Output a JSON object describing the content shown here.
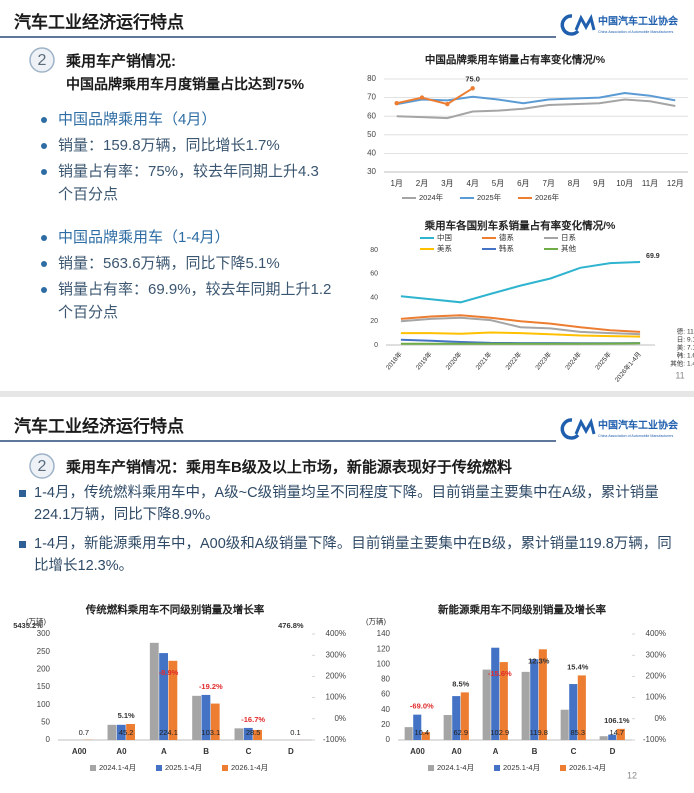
{
  "slides": [
    {
      "header": "汽车工业经济运行特点",
      "logo": "中国汽车工业协会",
      "logo_en": "China Association of Automobile Manufacturers",
      "number": "2",
      "heading": "乘用车产销情况:",
      "subheading": "中国品牌乘用车月度销量占比达到75%",
      "bullets": [
        "中国品牌乘用车（4月）",
        "销量：159.8万辆，同比增长1.7%",
        "销量占有率：75%，较去年同期上升4.3个百分点",
        "中国品牌乘用车（1-4月）",
        "销量：563.6万辆，同比下降5.1%",
        "销量占有率：69.9%，较去年同期上升1.2个百分点"
      ],
      "page": "11"
    },
    {
      "header": "汽车工业经济运行特点",
      "logo": "中国汽车工业协会",
      "logo_en": "China Association of Automobile Manufacturers",
      "number": "2",
      "heading": "乘用车产销情况：",
      "subheading": "乘用车B级及以上市场，新能源表现好于传统燃料",
      "bullets": [
        "1-4月，传统燃料乘用车中，A级~C级销量均呈不同程度下降。目前销量主要集中在A级，累计销量224.1万辆，同比下降8.9%。",
        "1-4月，新能源乘用车中，A00级和A级销量下降。目前销量主要集中在B级，累计销量119.8万辆，同比增长12.3%。"
      ],
      "page": "12"
    }
  ],
  "chart_data": [
    {
      "type": "line",
      "title": "中国品牌乘用车销量占有率变化情况/%",
      "categories": [
        "1月",
        "2月",
        "3月",
        "4月",
        "5月",
        "6月",
        "7月",
        "8月",
        "9月",
        "10月",
        "11月",
        "12月"
      ],
      "series": [
        {
          "name": "2024年",
          "color": "#a5a5a5",
          "values": [
            60,
            59.5,
            59,
            62.5,
            63,
            64,
            66,
            66.5,
            67,
            69,
            68,
            65.5
          ]
        },
        {
          "name": "2025年",
          "color": "#5b9bd5",
          "values": [
            66.5,
            69,
            68.5,
            70.5,
            69,
            67,
            69,
            69.5,
            70,
            72.5,
            71,
            68.5
          ]
        },
        {
          "name": "2026年",
          "color": "#ed7d31",
          "markers": true,
          "values": [
            67,
            70,
            66.5,
            75,
            null,
            null,
            null,
            null,
            null,
            null,
            null,
            null
          ],
          "value_labels": [
            null,
            null,
            null,
            "75.0",
            null,
            null,
            null,
            null,
            null,
            null,
            null,
            null
          ]
        }
      ],
      "ylim": [
        30,
        80
      ],
      "yticks": [
        30,
        40,
        50,
        60,
        70,
        80
      ],
      "grid": true,
      "legend": "bottom"
    },
    {
      "type": "line",
      "title": "乘用车各国别车系销量占有率变化情况/%",
      "categories": [
        "2018年",
        "2019年",
        "2020年",
        "2021年",
        "2022年",
        "2023年",
        "2024年",
        "2025年",
        "2026年1-4月"
      ],
      "series": [
        {
          "name": "中国",
          "color": "#2fb4d0",
          "values": [
            41,
            38.5,
            36,
            43,
            50,
            56,
            65,
            69,
            69.9
          ],
          "value_labels": [
            null,
            null,
            null,
            null,
            null,
            null,
            null,
            null,
            "69.9"
          ]
        },
        {
          "name": "德系",
          "color": "#ed7d31",
          "label_prefix": "德:",
          "values": [
            22,
            24,
            25,
            23,
            20,
            18,
            15,
            12.5,
            11.0
          ],
          "value_labels": [
            null,
            null,
            null,
            null,
            null,
            null,
            null,
            null,
            "11.0"
          ]
        },
        {
          "name": "日系",
          "color": "#a5a5a5",
          "label_prefix": "日:",
          "values": [
            20,
            22,
            23,
            21,
            15,
            14,
            11,
            10,
            9.1
          ],
          "value_labels": [
            null,
            null,
            null,
            null,
            null,
            null,
            null,
            null,
            "9.1"
          ]
        },
        {
          "name": "美系",
          "color": "#ffc000",
          "label_prefix": "美:",
          "values": [
            10,
            10,
            9.5,
            10.5,
            10,
            9,
            8,
            7.5,
            7.1
          ],
          "value_labels": [
            null,
            null,
            null,
            null,
            null,
            null,
            null,
            null,
            "7.1"
          ]
        },
        {
          "name": "韩系",
          "color": "#4472c4",
          "label_prefix": "韩:",
          "values": [
            4.5,
            3.5,
            2.5,
            1.8,
            1.6,
            1.6,
            1.5,
            1.5,
            1.6
          ],
          "value_labels": [
            null,
            null,
            null,
            null,
            null,
            null,
            null,
            null,
            "1.6"
          ]
        },
        {
          "name": "其他",
          "color": "#70ad47",
          "label_prefix": "其他:",
          "values": [
            1,
            1,
            1,
            1,
            1,
            1,
            1,
            1.2,
            1.4
          ],
          "value_labels": [
            null,
            null,
            null,
            null,
            null,
            null,
            null,
            null,
            "1.4"
          ]
        }
      ],
      "ylim": [
        0,
        80
      ],
      "yticks": [
        0,
        20,
        40,
        60,
        80
      ],
      "grid": false,
      "legend": "top"
    },
    {
      "type": "bar",
      "title": "传统燃料乘用车不同级别销量及增长率",
      "unit": "(万辆)",
      "categories": [
        "A00",
        "A0",
        "A",
        "B",
        "C",
        "D"
      ],
      "series": [
        {
          "name": "2024.1-4月",
          "color": "#a5a5a5",
          "values": [
            0.01,
            43,
            275,
            125,
            33,
            0.01
          ]
        },
        {
          "name": "2025.1-4月",
          "color": "#4472c4",
          "values": [
            0.01,
            43,
            246,
            127.6,
            34.2,
            0.02
          ]
        },
        {
          "name": "2026.1-4月",
          "color": "#ed7d31",
          "data_labels": true,
          "values": [
            0.7,
            45.2,
            224.1,
            103.1,
            28.5,
            0.1
          ]
        }
      ],
      "growth": {
        "axis": "y2",
        "values": [
          5435.2,
          5.1,
          -8.9,
          -19.2,
          -16.7,
          476.8
        ],
        "value_labels": [
          "5435.2%",
          "5.1%",
          "-8.9%",
          "-19.2%",
          "-16.7%",
          "476.8%"
        ]
      },
      "ylim": [
        0,
        300
      ],
      "yticks": [
        0,
        50,
        100,
        150,
        200,
        250,
        300
      ],
      "y2lim": [
        -100,
        400
      ],
      "y2ticks": [
        {
          "value": -100,
          "label": "-100%"
        },
        {
          "value": 0,
          "label": "0%"
        },
        {
          "value": 100,
          "label": "100%"
        },
        {
          "value": 200,
          "label": "200%"
        },
        {
          "value": 300,
          "label": "300%"
        },
        {
          "value": 400,
          "label": "400%"
        }
      ],
      "grid": false,
      "legend": "bottom"
    },
    {
      "type": "bar",
      "title": "新能源乘用车不同级别销量及增长率",
      "unit": "(万辆)",
      "categories": [
        "A00",
        "A0",
        "A",
        "B",
        "C",
        "D"
      ],
      "series": [
        {
          "name": "2024.1-4月",
          "color": "#a5a5a5",
          "values": [
            17,
            33,
            93,
            90,
            40,
            5
          ]
        },
        {
          "name": "2025.1-4月",
          "color": "#4472c4",
          "values": [
            33.5,
            58,
            121.9,
            106.7,
            73.9,
            7.1
          ]
        },
        {
          "name": "2026.1-4月",
          "color": "#ed7d31",
          "data_labels": true,
          "values": [
            10.4,
            62.9,
            102.9,
            119.8,
            85.3,
            14.7
          ]
        }
      ],
      "growth": {
        "axis": "y2",
        "values": [
          -69.0,
          8.5,
          -15.6,
          12.3,
          15.4,
          106.1
        ],
        "value_labels": [
          "-69.0%",
          "8.5%",
          "-15.6%",
          "12.3%",
          "15.4%",
          "106.1%"
        ]
      },
      "ylim": [
        0,
        140
      ],
      "yticks": [
        0,
        20,
        40,
        60,
        80,
        100,
        120,
        140
      ],
      "y2lim": [
        -100,
        400
      ],
      "y2ticks": [
        {
          "value": -100,
          "label": "-100%"
        },
        {
          "value": 0,
          "label": "0%"
        },
        {
          "value": 100,
          "label": "100%"
        },
        {
          "value": 200,
          "label": "200%"
        },
        {
          "value": 300,
          "label": "300%"
        },
        {
          "value": 400,
          "label": "400%"
        }
      ],
      "grid": false,
      "legend": "bottom"
    }
  ]
}
